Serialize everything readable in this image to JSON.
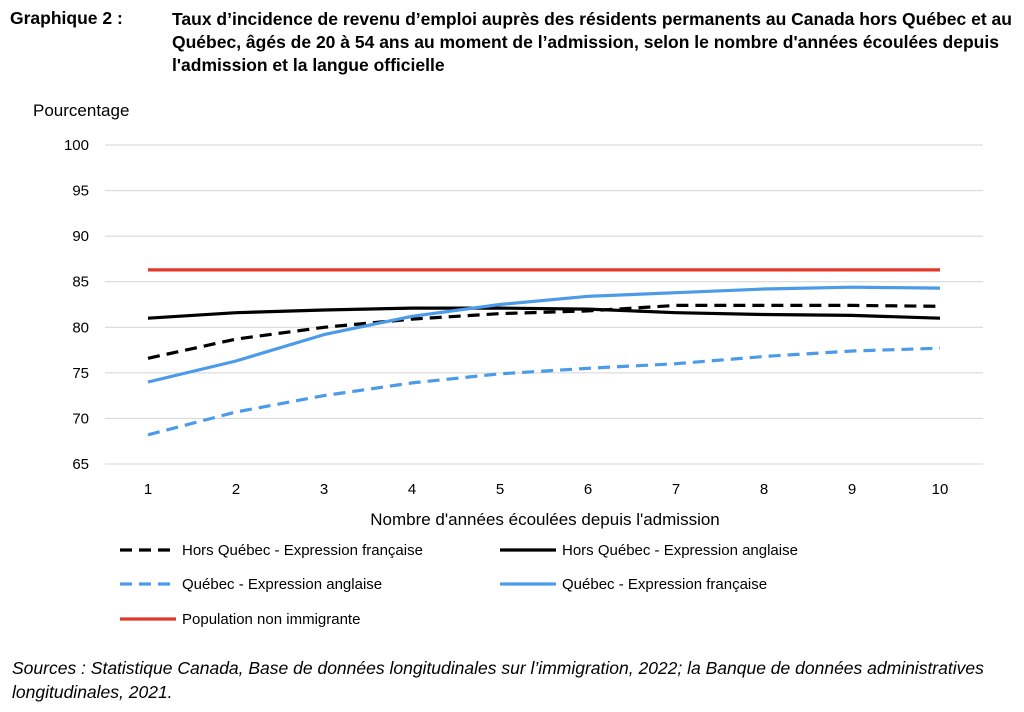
{
  "header": {
    "label": "Graphique 2 :",
    "title": "Taux d’incidence de revenu d’emploi auprès des résidents permanents au Canada hors Québec et au Québec, âgés de 20 à 54 ans au moment de l’admission, selon le nombre d'années écoulées depuis l'admission et la langue officielle"
  },
  "footer": {
    "sources": "Sources : Statistique Canada, Base de données longitudinales sur l’immigration, 2022; la Banque de données administratives longitudinales, 2021."
  },
  "chart_data": {
    "type": "line",
    "title": "",
    "ylabel": "Pourcentage",
    "xlabel": "Nombre d'années écoulées depuis l'admission",
    "x": [
      1,
      2,
      3,
      4,
      5,
      6,
      7,
      8,
      9,
      10
    ],
    "ylim": [
      65,
      100
    ],
    "yticks": [
      65,
      70,
      75,
      80,
      85,
      90,
      95,
      100
    ],
    "grid": true,
    "legend_position": "bottom",
    "series": [
      {
        "name": "Hors Québec - Expression française",
        "color": "#000000",
        "dash": true,
        "values": [
          76.6,
          78.7,
          80.0,
          80.9,
          81.5,
          81.8,
          82.4,
          82.4,
          82.4,
          82.3
        ]
      },
      {
        "name": "Hors Québec -  Expression anglaise",
        "color": "#000000",
        "dash": false,
        "values": [
          81.0,
          81.6,
          81.9,
          82.1,
          82.1,
          82.0,
          81.6,
          81.4,
          81.3,
          81.0
        ]
      },
      {
        "name": "Québec - Expression anglaise",
        "color": "#4c9be8",
        "dash": true,
        "values": [
          68.2,
          70.7,
          72.5,
          73.9,
          74.9,
          75.5,
          76.0,
          76.8,
          77.4,
          77.7
        ]
      },
      {
        "name": "Québec - Expression française",
        "color": "#4c9be8",
        "dash": false,
        "values": [
          74.0,
          76.3,
          79.2,
          81.2,
          82.5,
          83.4,
          83.8,
          84.2,
          84.4,
          84.3
        ]
      },
      {
        "name": "Population non immigrante",
        "color": "#e0392b",
        "dash": false,
        "values": [
          86.3,
          86.3,
          86.3,
          86.3,
          86.3,
          86.3,
          86.3,
          86.3,
          86.3,
          86.3
        ]
      }
    ]
  }
}
